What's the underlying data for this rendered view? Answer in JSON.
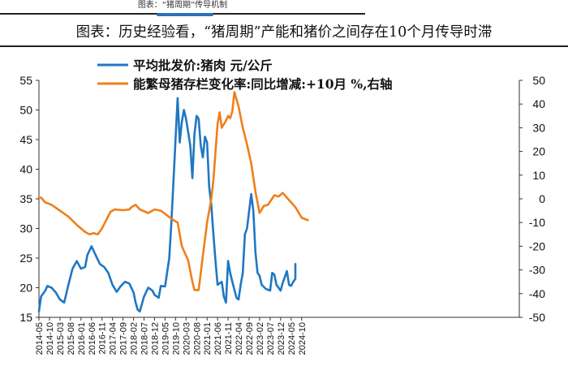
{
  "header": {
    "tag": "图表：“猪周期”传导机制",
    "accent_color": "#2f6fbf"
  },
  "chart_data": {
    "type": "line",
    "title": "图表：历史经验看，“猪周期”产能和猪价之间存在10个月传导时滞",
    "grid": false,
    "legend_position": "top-left",
    "y_left": {
      "ylim": [
        15,
        55
      ],
      "ticks": [
        "15",
        "20",
        "25",
        "30",
        "35",
        "40",
        "45",
        "50",
        "55"
      ]
    },
    "y_right": {
      "ylim": [
        -50,
        50
      ],
      "ticks": [
        "-50",
        "-40",
        "-30",
        "-20",
        "-10",
        "0",
        "10",
        "20",
        "30",
        "40",
        "50"
      ]
    },
    "x_ticks": [
      "2014-05",
      "2014-10",
      "2015-03",
      "2015-08",
      "2016-01",
      "2016-06",
      "2016-11",
      "2017-04",
      "2017-09",
      "2018-02",
      "2018-07",
      "2018-12",
      "2019-05",
      "2019-10",
      "2020-03",
      "2020-08",
      "2021-01",
      "2021-06",
      "2021-11",
      "2022-04",
      "2022-09",
      "2023-02",
      "2023-07",
      "2023-12",
      "2024-05",
      "2024-10"
    ],
    "series": [
      {
        "name": "平均批发价:猪肉 元/公斤",
        "axis": "left",
        "color": "#1f77c4",
        "points": [
          [
            "2014-05",
            16.0
          ],
          [
            "2014-06",
            18.5
          ],
          [
            "2014-08",
            19.5
          ],
          [
            "2014-09",
            20.3
          ],
          [
            "2014-11",
            20.0
          ],
          [
            "2015-01",
            19.2
          ],
          [
            "2015-03",
            18.0
          ],
          [
            "2015-05",
            17.5
          ],
          [
            "2015-07",
            20.5
          ],
          [
            "2015-09",
            23.2
          ],
          [
            "2015-11",
            24.5
          ],
          [
            "2016-01",
            23.2
          ],
          [
            "2016-03",
            23.5
          ],
          [
            "2016-04",
            25.5
          ],
          [
            "2016-06",
            27.0
          ],
          [
            "2016-08",
            25.5
          ],
          [
            "2016-10",
            24.0
          ],
          [
            "2016-12",
            23.5
          ],
          [
            "2017-02",
            22.5
          ],
          [
            "2017-04",
            20.5
          ],
          [
            "2017-06",
            19.3
          ],
          [
            "2017-08",
            20.3
          ],
          [
            "2017-10",
            21.0
          ],
          [
            "2017-12",
            20.7
          ],
          [
            "2018-02",
            19.2
          ],
          [
            "2018-03",
            17.5
          ],
          [
            "2018-04",
            16.3
          ],
          [
            "2018-05",
            16.0
          ],
          [
            "2018-07",
            18.5
          ],
          [
            "2018-09",
            20.0
          ],
          [
            "2018-11",
            19.5
          ],
          [
            "2018-12",
            18.8
          ],
          [
            "2019-02",
            18.3
          ],
          [
            "2019-03",
            20.3
          ],
          [
            "2019-05",
            20.2
          ],
          [
            "2019-07",
            25.0
          ],
          [
            "2019-08",
            31.0
          ],
          [
            "2019-09",
            38.0
          ],
          [
            "2019-10",
            45.0
          ],
          [
            "2019-11",
            52.0
          ],
          [
            "2019-12",
            44.5
          ],
          [
            "2020-01",
            48.0
          ],
          [
            "2020-02",
            50.0
          ],
          [
            "2020-03",
            48.5
          ],
          [
            "2020-05",
            44.0
          ],
          [
            "2020-06",
            38.5
          ],
          [
            "2020-07",
            46.0
          ],
          [
            "2020-08",
            49.0
          ],
          [
            "2020-09",
            48.5
          ],
          [
            "2020-10",
            44.0
          ],
          [
            "2020-11",
            42.0
          ],
          [
            "2020-12",
            45.5
          ],
          [
            "2021-01",
            44.5
          ],
          [
            "2021-02",
            37.0
          ],
          [
            "2021-03",
            34.0
          ],
          [
            "2021-04",
            29.0
          ],
          [
            "2021-05",
            24.5
          ],
          [
            "2021-06",
            20.5
          ],
          [
            "2021-08",
            21.0
          ],
          [
            "2021-09",
            18.5
          ],
          [
            "2021-10",
            17.5
          ],
          [
            "2021-11",
            24.5
          ],
          [
            "2021-12",
            22.5
          ],
          [
            "2022-01",
            21.0
          ],
          [
            "2022-03",
            18.3
          ],
          [
            "2022-04",
            18.0
          ],
          [
            "2022-05",
            20.5
          ],
          [
            "2022-06",
            22.5
          ],
          [
            "2022-07",
            29.0
          ],
          [
            "2022-08",
            30.0
          ],
          [
            "2022-10",
            35.8
          ],
          [
            "2022-11",
            33.0
          ],
          [
            "2022-12",
            26.0
          ],
          [
            "2023-01",
            22.5
          ],
          [
            "2023-02",
            22.0
          ],
          [
            "2023-03",
            20.5
          ],
          [
            "2023-05",
            19.8
          ],
          [
            "2023-07",
            19.5
          ],
          [
            "2023-08",
            22.5
          ],
          [
            "2023-09",
            22.2
          ],
          [
            "2023-10",
            20.5
          ],
          [
            "2023-12",
            19.5
          ],
          [
            "2024-01",
            20.8
          ],
          [
            "2024-03",
            22.8
          ],
          [
            "2024-04",
            20.5
          ],
          [
            "2024-05",
            20.3
          ],
          [
            "2024-06",
            21.0
          ],
          [
            "2024-07",
            21.5
          ],
          [
            "2024-07",
            24.0
          ]
        ]
      },
      {
        "name": "能繁母猪存栏变化率:同比增减:+10月 %,右轴",
        "axis": "right",
        "color": "#f07f18",
        "points": [
          [
            "2014-05",
            0.5
          ],
          [
            "2014-06",
            0.5
          ],
          [
            "2014-08",
            -1.5
          ],
          [
            "2014-11",
            -2.5
          ],
          [
            "2015-03",
            -5.0
          ],
          [
            "2015-07",
            -7.5
          ],
          [
            "2015-11",
            -11.0
          ],
          [
            "2016-03",
            -14.0
          ],
          [
            "2016-05",
            -15.0
          ],
          [
            "2016-07",
            -14.5
          ],
          [
            "2016-09",
            -15.0
          ],
          [
            "2016-11",
            -12.5
          ],
          [
            "2017-01",
            -9.0
          ],
          [
            "2017-03",
            -5.5
          ],
          [
            "2017-05",
            -4.5
          ],
          [
            "2017-09",
            -4.8
          ],
          [
            "2017-12",
            -4.5
          ],
          [
            "2018-01",
            -3.5
          ],
          [
            "2018-03",
            -2.5
          ],
          [
            "2018-05",
            -4.5
          ],
          [
            "2018-09",
            -6.0
          ],
          [
            "2018-12",
            -4.5
          ],
          [
            "2019-03",
            -5.0
          ],
          [
            "2019-06",
            -7.0
          ],
          [
            "2019-09",
            -9.0
          ],
          [
            "2019-11",
            -10.0
          ],
          [
            "2020-01",
            -20.0
          ],
          [
            "2020-04",
            -26.0
          ],
          [
            "2020-06",
            -35.0
          ],
          [
            "2020-07",
            -38.5
          ],
          [
            "2020-09",
            -38.5
          ],
          [
            "2020-11",
            -24.0
          ],
          [
            "2021-01",
            -10.0
          ],
          [
            "2021-03",
            0.0
          ],
          [
            "2021-04",
            8.0
          ],
          [
            "2021-06",
            31.5
          ],
          [
            "2021-07",
            36.5
          ],
          [
            "2021-08",
            30.0
          ],
          [
            "2021-10",
            33.0
          ],
          [
            "2021-11",
            35.0
          ],
          [
            "2021-12",
            34.0
          ],
          [
            "2022-01",
            37.0
          ],
          [
            "2022-02",
            45.0
          ],
          [
            "2022-04",
            39.0
          ],
          [
            "2022-06",
            30.0
          ],
          [
            "2022-08",
            23.0
          ],
          [
            "2022-10",
            15.0
          ],
          [
            "2022-12",
            3.0
          ],
          [
            "2023-02",
            -6.0
          ],
          [
            "2023-04",
            -3.0
          ],
          [
            "2023-06",
            -2.5
          ],
          [
            "2023-09",
            1.5
          ],
          [
            "2023-11",
            1.0
          ],
          [
            "2024-01",
            2.5
          ],
          [
            "2024-04",
            -0.5
          ],
          [
            "2024-07",
            -3.5
          ],
          [
            "2024-10",
            -8.0
          ],
          [
            "2025-01",
            -9.0
          ]
        ]
      }
    ]
  }
}
